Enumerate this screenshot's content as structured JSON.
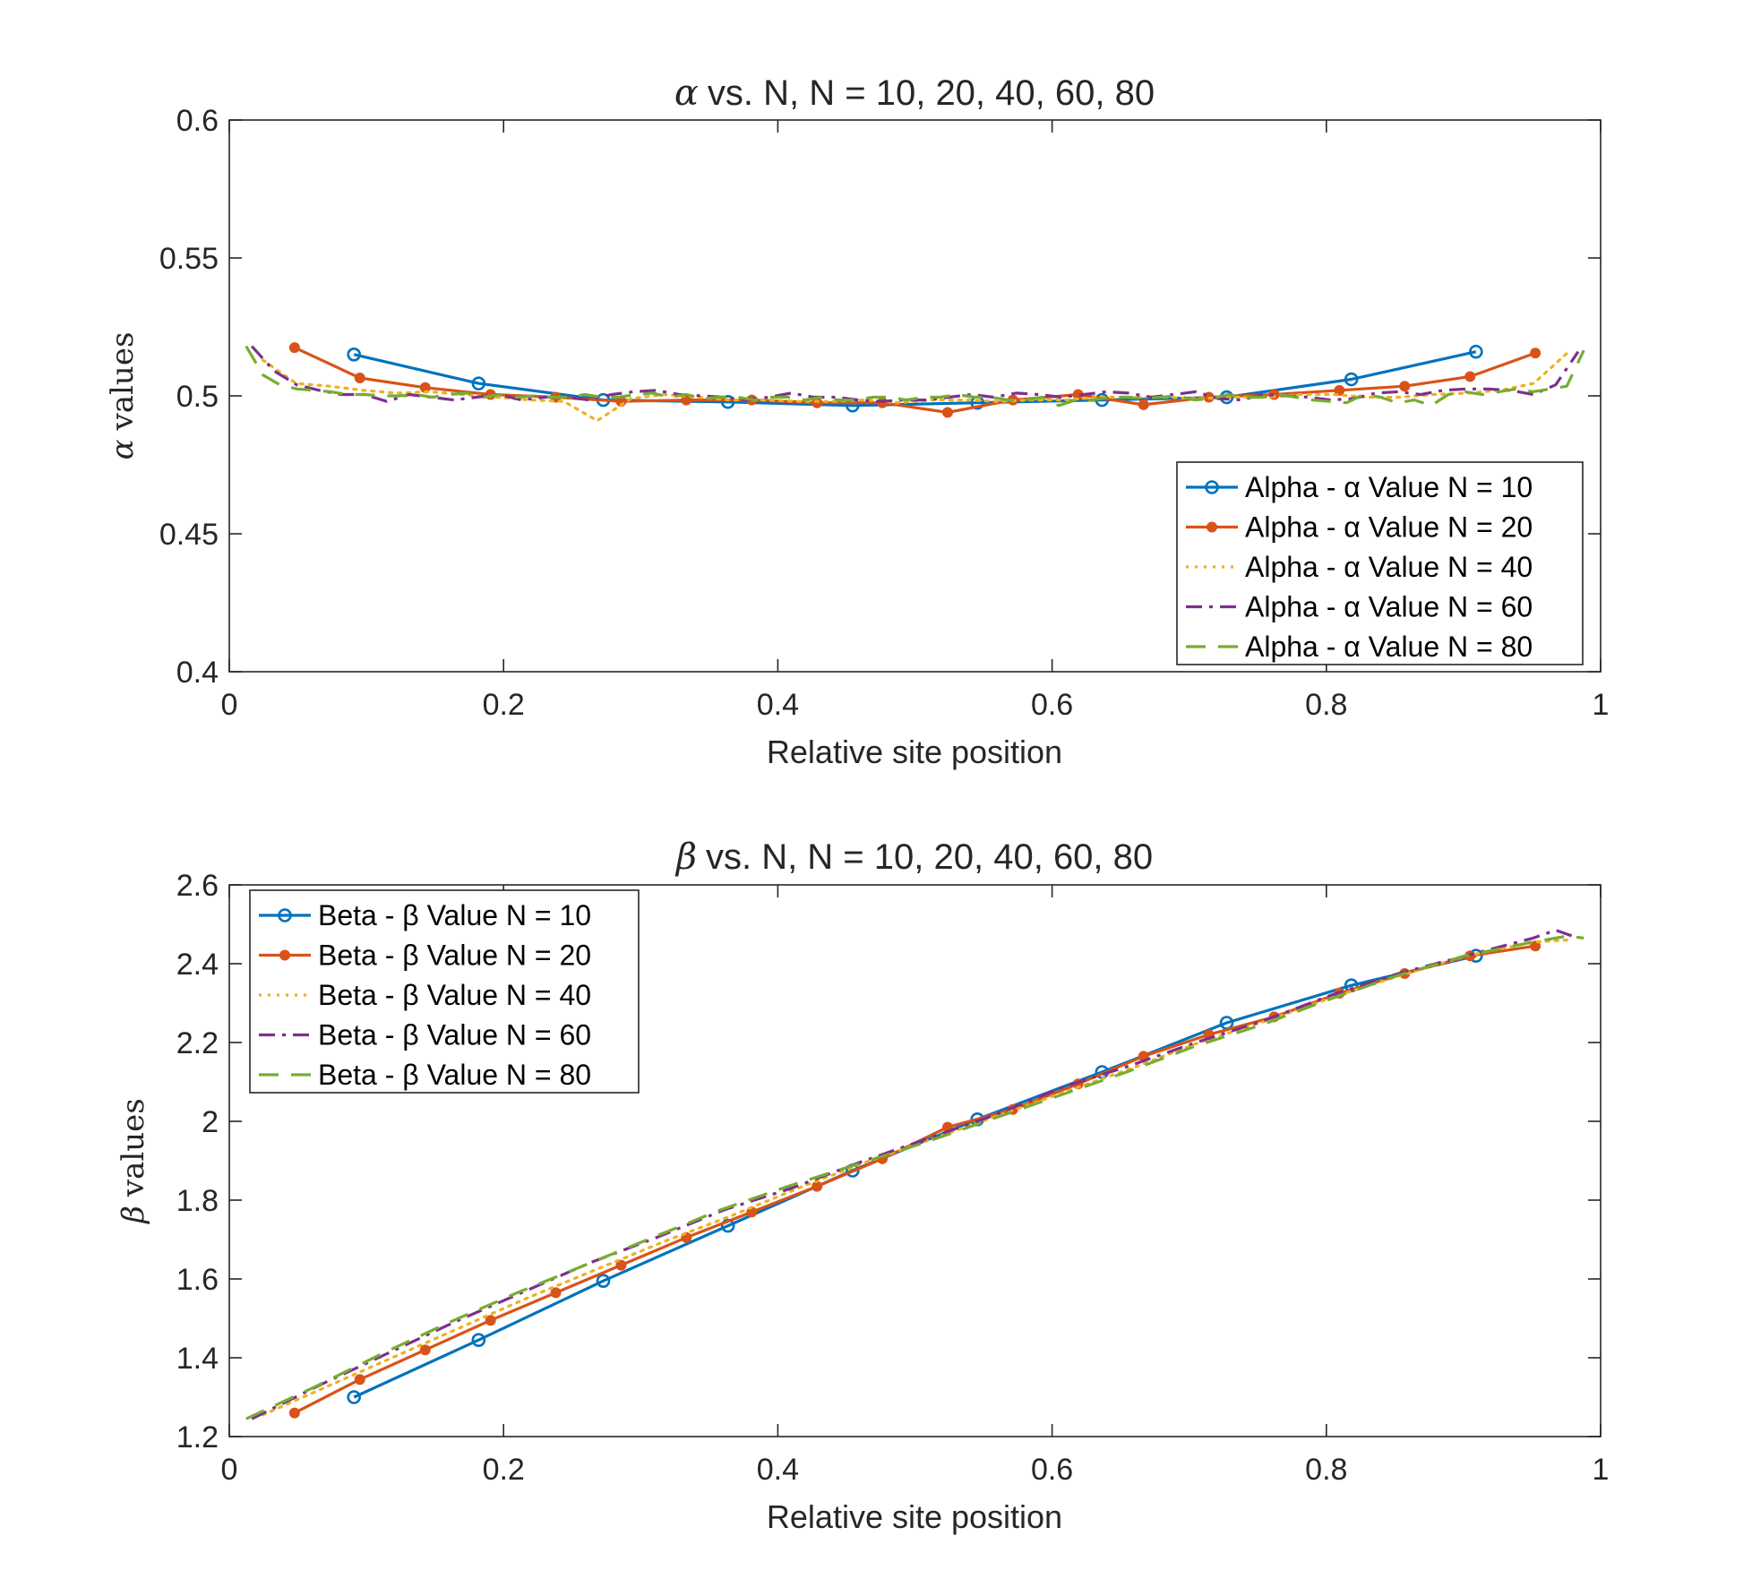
{
  "chart_data": [
    {
      "type": "line",
      "title_symbol": "α",
      "title": "vs. N, N = 10, 20, 40, 60, 80",
      "xlabel": "Relative site position",
      "ylabel_symbol": "α",
      "ylabel": "values",
      "xlim": [
        0,
        1
      ],
      "ylim": [
        0.4,
        0.6
      ],
      "xticks": [
        0,
        0.2,
        0.4,
        0.6,
        0.8,
        1
      ],
      "xtick_labels": [
        "0",
        "0.2",
        "0.4",
        "0.6",
        "0.8",
        "1"
      ],
      "yticks": [
        0.4,
        0.45,
        0.5,
        0.55,
        0.6
      ],
      "ytick_labels": [
        "0.4",
        "0.45",
        "0.5",
        "0.55",
        "0.6"
      ],
      "legend_position": "bottom-right",
      "series": [
        {
          "name": "Alpha - α Value N = 10",
          "color": "#0072BD",
          "style": "solid",
          "marker": "circle",
          "x": [
            0.0909,
            0.1818,
            0.2727,
            0.3636,
            0.4545,
            0.5455,
            0.6364,
            0.7273,
            0.8182,
            0.9091
          ],
          "y": [
            0.515,
            0.5045,
            0.4985,
            0.4978,
            0.4965,
            0.4975,
            0.4985,
            0.4995,
            0.506,
            0.516
          ]
        },
        {
          "name": "Alpha - α Value N = 20",
          "color": "#D95319",
          "style": "solid",
          "marker": "dot",
          "x": [
            0.0476,
            0.0952,
            0.1429,
            0.1905,
            0.2381,
            0.2857,
            0.3333,
            0.381,
            0.4286,
            0.4762,
            0.5238,
            0.5714,
            0.619,
            0.6667,
            0.7143,
            0.7619,
            0.8095,
            0.8571,
            0.9048,
            0.9524
          ],
          "y": [
            0.5175,
            0.5065,
            0.503,
            0.5005,
            0.4995,
            0.498,
            0.4985,
            0.4985,
            0.4975,
            0.4975,
            0.494,
            0.4985,
            0.5005,
            0.4968,
            0.4995,
            0.5005,
            0.502,
            0.5035,
            0.507,
            0.5155
          ]
        },
        {
          "name": "Alpha - α Value N = 40",
          "color": "#EDB120",
          "style": "dotted",
          "marker": "none",
          "x": [
            0.0244,
            0.0488,
            0.0732,
            0.0976,
            0.122,
            0.1463,
            0.1707,
            0.1951,
            0.2195,
            0.2439,
            0.2683,
            0.2927,
            0.3171,
            0.3415,
            0.3659,
            0.3902,
            0.4146,
            0.439,
            0.4634,
            0.4878,
            0.5122,
            0.5366,
            0.561,
            0.5854,
            0.6098,
            0.6341,
            0.6585,
            0.6829,
            0.7073,
            0.7317,
            0.7561,
            0.7805,
            0.8049,
            0.8293,
            0.8537,
            0.878,
            0.9024,
            0.9268,
            0.9512,
            0.9756
          ],
          "y": [
            0.513,
            0.5045,
            0.5035,
            0.502,
            0.501,
            0.5015,
            0.5005,
            0.4995,
            0.4985,
            0.498,
            0.491,
            0.499,
            0.5005,
            0.4995,
            0.4985,
            0.4985,
            0.498,
            0.498,
            0.4985,
            0.4975,
            0.4985,
            0.4985,
            0.498,
            0.4985,
            0.4985,
            0.4995,
            0.4995,
            0.4995,
            0.499,
            0.4995,
            0.4995,
            0.5005,
            0.5005,
            0.4995,
            0.4995,
            0.5005,
            0.501,
            0.502,
            0.5045,
            0.5155
          ]
        },
        {
          "name": "Alpha - α Value N = 60",
          "color": "#7E2F8E",
          "style": "dashdot",
          "marker": "none",
          "x": [
            0.0164,
            0.0328,
            0.0492,
            0.0656,
            0.082,
            0.0984,
            0.1148,
            0.1311,
            0.1475,
            0.1639,
            0.1803,
            0.1967,
            0.2131,
            0.2295,
            0.2459,
            0.2623,
            0.2787,
            0.2951,
            0.3115,
            0.3279,
            0.3443,
            0.3607,
            0.377,
            0.3934,
            0.4098,
            0.4262,
            0.4426,
            0.459,
            0.4754,
            0.4918,
            0.5082,
            0.5246,
            0.541,
            0.5574,
            0.5738,
            0.5902,
            0.6066,
            0.623,
            0.6393,
            0.6557,
            0.6721,
            0.6885,
            0.7049,
            0.7213,
            0.7377,
            0.7541,
            0.7705,
            0.7869,
            0.8033,
            0.8197,
            0.8361,
            0.8525,
            0.8689,
            0.8852,
            0.9016,
            0.918,
            0.9344,
            0.9508,
            0.9672,
            0.9836
          ],
          "y": [
            0.518,
            0.509,
            0.504,
            0.502,
            0.5005,
            0.5005,
            0.498,
            0.5005,
            0.4995,
            0.4985,
            0.4995,
            0.5005,
            0.4985,
            0.4995,
            0.4995,
            0.4985,
            0.5005,
            0.5015,
            0.502,
            0.5005,
            0.5,
            0.4995,
            0.4985,
            0.4995,
            0.501,
            0.4995,
            0.4995,
            0.4985,
            0.498,
            0.4985,
            0.4985,
            0.4995,
            0.5005,
            0.4995,
            0.501,
            0.5005,
            0.4995,
            0.5005,
            0.5015,
            0.501,
            0.4995,
            0.5005,
            0.5015,
            0.499,
            0.4985,
            0.5005,
            0.5,
            0.4995,
            0.4985,
            0.499,
            0.501,
            0.5015,
            0.5005,
            0.502,
            0.5025,
            0.5025,
            0.502,
            0.5005,
            0.504,
            0.516
          ]
        },
        {
          "name": "Alpha - α Value N = 80",
          "color": "#77AC30",
          "style": "dashed",
          "marker": "none",
          "x": [
            0.0123,
            0.0247,
            0.037,
            0.0494,
            0.0617,
            0.0741,
            0.0864,
            0.0988,
            0.1111,
            0.1235,
            0.1358,
            0.1481,
            0.1605,
            0.1728,
            0.1852,
            0.1975,
            0.2099,
            0.2222,
            0.2346,
            0.2469,
            0.2593,
            0.2716,
            0.284,
            0.2963,
            0.3086,
            0.321,
            0.3333,
            0.3457,
            0.358,
            0.3704,
            0.3827,
            0.3951,
            0.4074,
            0.4198,
            0.4321,
            0.4444,
            0.4568,
            0.4691,
            0.4815,
            0.4938,
            0.5062,
            0.5185,
            0.5309,
            0.5432,
            0.5556,
            0.5679,
            0.5802,
            0.5926,
            0.6049,
            0.6173,
            0.6296,
            0.642,
            0.6543,
            0.6667,
            0.679,
            0.6914,
            0.7037,
            0.716,
            0.7284,
            0.7407,
            0.7531,
            0.7654,
            0.7778,
            0.7901,
            0.8025,
            0.8148,
            0.8272,
            0.8395,
            0.8519,
            0.8642,
            0.8765,
            0.8889,
            0.9012,
            0.9136,
            0.9259,
            0.9383,
            0.9506,
            0.963,
            0.9753,
            0.9877
          ],
          "y": [
            0.518,
            0.5075,
            0.504,
            0.5025,
            0.502,
            0.5015,
            0.5005,
            0.5005,
            0.5,
            0.5,
            0.5005,
            0.4995,
            0.5005,
            0.501,
            0.4995,
            0.5005,
            0.4995,
            0.5,
            0.4995,
            0.4995,
            0.5005,
            0.4995,
            0.4995,
            0.5005,
            0.501,
            0.4995,
            0.5005,
            0.499,
            0.4995,
            0.4995,
            0.4985,
            0.4995,
            0.4995,
            0.4985,
            0.4995,
            0.4985,
            0.4985,
            0.4995,
            0.4995,
            0.4985,
            0.4995,
            0.4995,
            0.5005,
            0.4995,
            0.4995,
            0.4985,
            0.4985,
            0.4995,
            0.4965,
            0.4985,
            0.4985,
            0.4995,
            0.4995,
            0.499,
            0.4995,
            0.5,
            0.4985,
            0.499,
            0.5005,
            0.4995,
            0.4995,
            0.5005,
            0.4995,
            0.4985,
            0.498,
            0.4975,
            0.5005,
            0.4995,
            0.4975,
            0.4985,
            0.4965,
            0.5005,
            0.5015,
            0.5005,
            0.5015,
            0.5025,
            0.5015,
            0.5025,
            0.5035,
            0.5165
          ]
        }
      ]
    },
    {
      "type": "line",
      "title_symbol": "β",
      "title": "vs. N, N = 10, 20, 40, 60, 80",
      "xlabel": "Relative site position",
      "ylabel_symbol": "β",
      "ylabel": "values",
      "xlim": [
        0,
        1
      ],
      "ylim": [
        1.2,
        2.6
      ],
      "xticks": [
        0,
        0.2,
        0.4,
        0.6,
        0.8,
        1
      ],
      "xtick_labels": [
        "0",
        "0.2",
        "0.4",
        "0.6",
        "0.8",
        "1"
      ],
      "yticks": [
        1.2,
        1.4,
        1.6,
        1.8,
        2,
        2.2,
        2.4,
        2.6
      ],
      "ytick_labels": [
        "1.2",
        "1.4",
        "1.6",
        "1.8",
        "2",
        "2.2",
        "2.4",
        "2.6"
      ],
      "legend_position": "top-left",
      "series": [
        {
          "name": "Beta - β Value N = 10",
          "color": "#0072BD",
          "style": "solid",
          "marker": "circle",
          "x": [
            0.0909,
            0.1818,
            0.2727,
            0.3636,
            0.4545,
            0.5455,
            0.6364,
            0.7273,
            0.8182,
            0.9091
          ],
          "y": [
            1.3,
            1.445,
            1.595,
            1.735,
            1.875,
            2.005,
            2.125,
            2.25,
            2.345,
            2.42
          ]
        },
        {
          "name": "Beta - β Value N = 20",
          "color": "#D95319",
          "style": "solid",
          "marker": "dot",
          "x": [
            0.0476,
            0.0952,
            0.1429,
            0.1905,
            0.2381,
            0.2857,
            0.3333,
            0.381,
            0.4286,
            0.4762,
            0.5238,
            0.5714,
            0.619,
            0.6667,
            0.7143,
            0.7619,
            0.8095,
            0.8571,
            0.9048,
            0.9524
          ],
          "y": [
            1.26,
            1.345,
            1.42,
            1.495,
            1.565,
            1.635,
            1.705,
            1.77,
            1.835,
            1.905,
            1.985,
            2.03,
            2.095,
            2.165,
            2.22,
            2.265,
            2.325,
            2.375,
            2.42,
            2.445
          ]
        },
        {
          "name": "Beta - β Value N = 40",
          "color": "#EDB120",
          "style": "dotted",
          "marker": "none",
          "x": [
            0.0244,
            0.0732,
            0.122,
            0.1707,
            0.2195,
            0.2683,
            0.3171,
            0.3659,
            0.4146,
            0.4634,
            0.5122,
            0.561,
            0.6098,
            0.6585,
            0.7073,
            0.7561,
            0.8049,
            0.8537,
            0.9024,
            0.9512,
            0.9756
          ],
          "y": [
            1.255,
            1.33,
            1.405,
            1.48,
            1.555,
            1.625,
            1.695,
            1.76,
            1.83,
            1.895,
            1.955,
            2.015,
            2.075,
            2.135,
            2.2,
            2.255,
            2.315,
            2.37,
            2.42,
            2.455,
            2.46
          ]
        },
        {
          "name": "Beta - β Value N = 60",
          "color": "#7E2F8E",
          "style": "dashdot",
          "marker": "none",
          "x": [
            0.0164,
            0.0656,
            0.1148,
            0.1639,
            0.2131,
            0.2623,
            0.3115,
            0.3607,
            0.4098,
            0.459,
            0.5082,
            0.5574,
            0.6066,
            0.6557,
            0.7049,
            0.7541,
            0.8033,
            0.8525,
            0.9016,
            0.9508,
            0.9672,
            0.9836
          ],
          "y": [
            1.245,
            1.33,
            1.41,
            1.49,
            1.565,
            1.64,
            1.705,
            1.775,
            1.83,
            1.895,
            1.955,
            2.015,
            2.085,
            2.14,
            2.2,
            2.255,
            2.32,
            2.375,
            2.42,
            2.465,
            2.485,
            2.465
          ]
        },
        {
          "name": "Beta - β Value N = 80",
          "color": "#77AC30",
          "style": "dashed",
          "marker": "none",
          "x": [
            0.0123,
            0.0617,
            0.1111,
            0.1605,
            0.2099,
            0.2593,
            0.3086,
            0.358,
            0.4074,
            0.4568,
            0.5062,
            0.5556,
            0.6049,
            0.6543,
            0.7037,
            0.7531,
            0.8025,
            0.8519,
            0.9012,
            0.9506,
            0.9753,
            0.9877
          ],
          "y": [
            1.245,
            1.325,
            1.41,
            1.49,
            1.565,
            1.635,
            1.705,
            1.775,
            1.835,
            1.89,
            1.945,
            2.005,
            2.065,
            2.125,
            2.19,
            2.245,
            2.31,
            2.37,
            2.42,
            2.455,
            2.47,
            2.465
          ]
        }
      ]
    }
  ]
}
